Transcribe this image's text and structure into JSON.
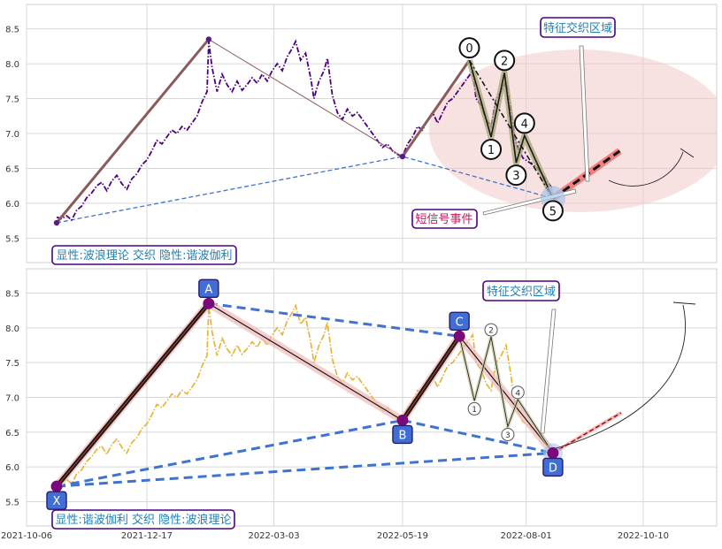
{
  "chart_data": [
    {
      "type": "line",
      "panel": "top",
      "x_range": [
        "2021-10-06",
        "2022-11-23"
      ],
      "ylim": [
        5.15,
        8.85
      ],
      "yticks": [
        "5.5",
        "6.0",
        "6.5",
        "7.0",
        "7.5",
        "8.0",
        "8.5"
      ],
      "grid": true,
      "colors": {
        "price": "#4b0082",
        "wave": "#8b5a5a",
        "trend": "#3f73d0",
        "zone": "#f2c8c8",
        "pattern": "#a8a876",
        "projection": "#f07070"
      },
      "series": [
        {
          "values": [
            [
              "2021-10-24",
              5.8
            ],
            [
              "2021-10-27",
              5.78
            ],
            [
              "2021-10-30",
              5.82
            ],
            [
              "2021-11-02",
              5.76
            ],
            [
              "2021-11-05",
              5.9
            ],
            [
              "2021-11-08",
              5.96
            ],
            [
              "2021-11-11",
              6.08
            ],
            [
              "2021-11-14",
              6.15
            ],
            [
              "2021-11-17",
              6.25
            ],
            [
              "2021-11-20",
              6.3
            ],
            [
              "2021-11-23",
              6.18
            ],
            [
              "2021-11-26",
              6.32
            ],
            [
              "2021-11-29",
              6.4
            ],
            [
              "2021-12-02",
              6.28
            ],
            [
              "2021-12-05",
              6.2
            ],
            [
              "2021-12-08",
              6.35
            ],
            [
              "2021-12-11",
              6.42
            ],
            [
              "2021-12-14",
              6.55
            ],
            [
              "2021-12-17",
              6.62
            ],
            [
              "2021-12-20",
              6.75
            ],
            [
              "2021-12-23",
              6.9
            ],
            [
              "2021-12-26",
              6.85
            ],
            [
              "2021-12-29",
              6.95
            ],
            [
              "2022-01-01",
              7.05
            ],
            [
              "2022-01-04",
              7.0
            ],
            [
              "2022-01-07",
              7.1
            ],
            [
              "2022-01-10",
              7.05
            ],
            [
              "2022-01-13",
              7.15
            ],
            [
              "2022-01-16",
              7.25
            ],
            [
              "2022-01-19",
              7.45
            ],
            [
              "2022-01-22",
              7.6
            ],
            [
              "2022-01-23",
              8.32
            ],
            [
              "2022-01-25",
              7.95
            ],
            [
              "2022-01-28",
              7.6
            ],
            [
              "2022-01-31",
              7.85
            ],
            [
              "2022-02-03",
              7.7
            ],
            [
              "2022-02-06",
              7.6
            ],
            [
              "2022-02-09",
              7.75
            ],
            [
              "2022-02-12",
              7.62
            ],
            [
              "2022-02-15",
              7.7
            ],
            [
              "2022-02-18",
              7.8
            ],
            [
              "2022-02-21",
              7.72
            ],
            [
              "2022-02-24",
              7.85
            ],
            [
              "2022-02-27",
              7.75
            ],
            [
              "2022-03-02",
              7.9
            ],
            [
              "2022-03-05",
              8.0
            ],
            [
              "2022-03-08",
              7.9
            ],
            [
              "2022-03-11",
              8.1
            ],
            [
              "2022-03-14",
              8.22
            ],
            [
              "2022-03-16",
              8.32
            ],
            [
              "2022-03-19",
              8.05
            ],
            [
              "2022-03-22",
              8.15
            ],
            [
              "2022-03-25",
              7.8
            ],
            [
              "2022-03-27",
              7.5
            ],
            [
              "2022-03-30",
              7.75
            ],
            [
              "2022-04-02",
              7.9
            ],
            [
              "2022-04-04",
              8.08
            ],
            [
              "2022-04-07",
              7.55
            ],
            [
              "2022-04-10",
              7.3
            ],
            [
              "2022-04-13",
              7.2
            ],
            [
              "2022-04-16",
              7.35
            ],
            [
              "2022-04-19",
              7.25
            ],
            [
              "2022-04-22",
              7.3
            ],
            [
              "2022-04-25",
              7.2
            ],
            [
              "2022-04-28",
              7.1
            ],
            [
              "2022-05-01",
              7.0
            ],
            [
              "2022-05-04",
              6.9
            ],
            [
              "2022-05-07",
              6.8
            ],
            [
              "2022-05-10",
              6.85
            ],
            [
              "2022-05-13",
              6.75
            ],
            [
              "2022-05-16",
              6.7
            ],
            [
              "2022-05-19",
              6.67
            ],
            [
              "2022-05-22",
              6.85
            ],
            [
              "2022-05-25",
              6.95
            ],
            [
              "2022-05-28",
              7.1
            ],
            [
              "2022-05-31",
              7.05
            ],
            [
              "2022-06-03",
              7.2
            ],
            [
              "2022-06-06",
              7.3
            ],
            [
              "2022-06-09",
              7.15
            ],
            [
              "2022-06-12",
              7.3
            ],
            [
              "2022-06-15",
              7.45
            ],
            [
              "2022-06-18",
              7.5
            ],
            [
              "2022-06-21",
              7.6
            ],
            [
              "2022-06-24",
              7.7
            ],
            [
              "2022-06-27",
              7.8
            ],
            [
              "2022-06-30",
              7.9
            ],
            [
              "2022-07-02",
              7.5
            ],
            [
              "2022-07-05",
              7.4
            ],
            [
              "2022-07-08",
              7.2
            ],
            [
              "2022-07-11",
              7.1
            ],
            [
              "2022-07-14",
              7.5
            ],
            [
              "2022-07-17",
              7.6
            ],
            [
              "2022-07-20",
              7.75
            ],
            [
              "2022-07-23",
              7.3
            ],
            [
              "2022-07-25",
              6.95
            ],
            [
              "2022-07-27",
              6.8
            ],
            [
              "2022-07-30",
              6.65
            ],
            [
              "2022-08-02",
              6.6
            ],
            [
              "2022-08-05",
              6.55
            ],
            [
              "2022-08-08",
              6.5
            ],
            [
              "2022-08-11",
              6.4
            ],
            [
              "2022-08-14",
              6.3
            ],
            [
              "2022-08-17",
              6.2
            ]
          ]
        }
      ],
      "markers": [
        {
          "label": "0",
          "date": "2022-06-28",
          "y": 8.05
        },
        {
          "label": "1",
          "date": "2022-07-11",
          "y": 6.95
        },
        {
          "label": "2",
          "date": "2022-07-19",
          "y": 7.87
        },
        {
          "label": "3",
          "date": "2022-07-26",
          "y": 6.58
        },
        {
          "label": "4",
          "date": "2022-07-31",
          "y": 6.97
        },
        {
          "label": "5",
          "date": "2022-08-17",
          "y": 6.07
        }
      ],
      "annotations": {
        "zone_label": "特征交织区域",
        "signal_label": "短信号事件",
        "caption": "显性:波浪理论 交织 隐性:谐波伽利"
      }
    },
    {
      "type": "line",
      "panel": "bottom",
      "x_range": [
        "2021-10-06",
        "2022-11-23"
      ],
      "xticks": [
        "2021-10-06",
        "2021-12-17",
        "2022-03-03",
        "2022-05-19",
        "2022-08-01",
        "2022-10-10"
      ],
      "ylim": [
        5.15,
        8.85
      ],
      "yticks": [
        "5.5",
        "6.0",
        "6.5",
        "7.0",
        "7.5",
        "8.0",
        "8.5"
      ],
      "grid": true,
      "colors": {
        "price": "#e8b030",
        "xabcd": "#1a1a1a",
        "trend": "#3f73d0",
        "point": "#7a0a7a",
        "label_box": "#3f6fd6"
      },
      "points": [
        {
          "label": "X",
          "date": "2021-10-24",
          "y": 5.72
        },
        {
          "label": "A",
          "date": "2022-01-23",
          "y": 8.35
        },
        {
          "label": "B",
          "date": "2022-05-19",
          "y": 6.67
        },
        {
          "label": "C",
          "date": "2022-06-22",
          "y": 7.88
        },
        {
          "label": "D",
          "date": "2022-08-17",
          "y": 6.2
        }
      ],
      "markers": [
        {
          "label": "1",
          "date": "2022-07-01",
          "y": 6.95
        },
        {
          "label": "2",
          "date": "2022-07-11",
          "y": 7.87
        },
        {
          "label": "3",
          "date": "2022-07-21",
          "y": 6.58
        },
        {
          "label": "4",
          "date": "2022-07-27",
          "y": 6.97
        }
      ],
      "annotations": {
        "zone_label": "特征交织区域",
        "caption": "显性:谐波伽利 交织 隐性:波浪理论"
      }
    }
  ]
}
